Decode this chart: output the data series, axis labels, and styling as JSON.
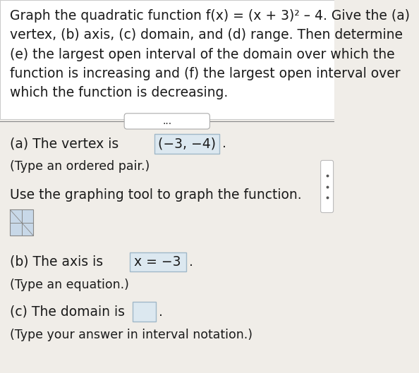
{
  "background_color": "#f0ede8",
  "title_text_lines": [
    "Graph the quadratic function f(x) = (x + 3)² – 4. Give the (a)",
    "vertex, (b) axis, (c) domain, and (d) range. Then determine",
    "(e) the largest open interval of the domain over which the",
    "function is increasing and (f) the largest open interval over",
    "which the function is decreasing."
  ],
  "separator_dots": "...",
  "part_a_label": "(a) The vertex is",
  "part_a_answer": "(−3, −4)",
  "part_a_sub": "(Type an ordered pair.)",
  "graphing_tool_text": "Use the graphing tool to graph the function.",
  "part_b_label": "(b) The axis is",
  "part_b_answer": "x = −3",
  "part_b_sub": "(Type an equation.)",
  "part_c_label": "(c) The domain is",
  "part_c_sub": "(Type your answer in interval notation.)",
  "text_color": "#1a1a1a",
  "box_fill": "#dce8f0",
  "box_border": "#a0b8c8",
  "separator_color": "#888888",
  "font_size_main": 13.5,
  "font_size_sub": 12.5
}
